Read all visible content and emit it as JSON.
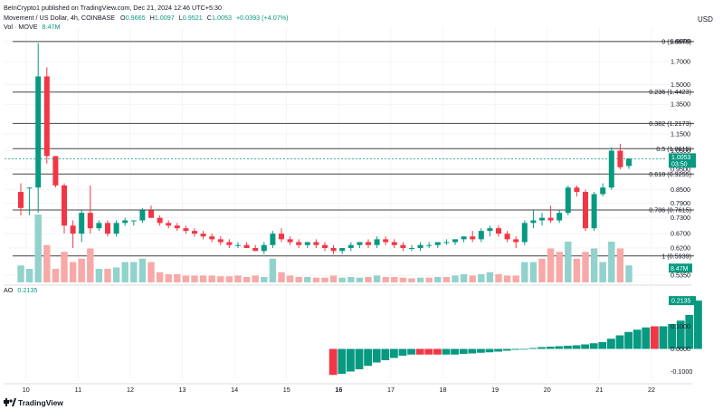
{
  "publisher": {
    "text": "BeInCrypto1 published on TradingView.com, Dec 21, 2024 12:46 UTC+5:30"
  },
  "symbol_info": {
    "name": "Movement / US Dollar, 4h, COINBASE",
    "o_label": "O",
    "o_value": "0.9665",
    "h_label": "H",
    "h_value": "1.0097",
    "l_label": "L",
    "l_value": "0.9521",
    "c_label": "C",
    "c_value": "1.0053",
    "change": "+0.0393 (+4.07%)"
  },
  "vol_info": {
    "label": "Vol · MOVE",
    "value": "8.47M"
  },
  "ao_info": {
    "label": "AO",
    "value": "0.2135"
  },
  "currency": "USD",
  "branding": {
    "logo_text": "TradingView"
  },
  "colors": {
    "up": "#089981",
    "down": "#f23645",
    "vol_up": "#92d2cc",
    "vol_down": "#f7a9a7",
    "fib_line": "#444444",
    "grid": "#eeeeee",
    "text": "#131722",
    "axis_text": "#131722"
  },
  "chart_data": [
    {
      "type": "candlestick",
      "name": "Movement / US Dollar, 4h, COINBASE",
      "y_scale": "log",
      "ylim": [
        0.53,
        2.05
      ],
      "y_ticks": [
        "1.9000",
        "1.7000",
        "1.5000",
        "1.3500",
        "1.1500",
        "1.0500",
        "0.9500",
        "0.8500",
        "0.7900",
        "0.7300",
        "0.6700",
        "0.6200",
        "0.5350"
      ],
      "x_ticks": [
        "10",
        "11",
        "12",
        "13",
        "14",
        "15",
        "16",
        "17",
        "18",
        "19",
        "20",
        "21",
        "22"
      ],
      "x_tick_positions": [
        0.6,
        6.6,
        12.6,
        18.6,
        24.6,
        30.6,
        36.6,
        42.6,
        48.6,
        54.6,
        60.6,
        66.6,
        72.6
      ],
      "candles": [
        {
          "o": 0.84,
          "h": 0.88,
          "l": 0.74,
          "c": 0.77
        },
        {
          "o": 0.86,
          "h": 0.86,
          "l": 0.74,
          "c": 0.86
        },
        {
          "o": 0.86,
          "h": 1.88,
          "l": 0.75,
          "c": 1.57
        },
        {
          "o": 1.57,
          "h": 1.65,
          "l": 0.98,
          "c": 1.02
        },
        {
          "o": 1.02,
          "h": 1.02,
          "l": 0.86,
          "c": 0.87
        },
        {
          "o": 0.87,
          "h": 0.88,
          "l": 0.67,
          "c": 0.7
        },
        {
          "o": 0.7,
          "h": 0.72,
          "l": 0.62,
          "c": 0.67
        },
        {
          "o": 0.67,
          "h": 0.76,
          "l": 0.64,
          "c": 0.75
        },
        {
          "o": 0.75,
          "h": 0.87,
          "l": 0.67,
          "c": 0.69
        },
        {
          "o": 0.69,
          "h": 0.72,
          "l": 0.68,
          "c": 0.71
        },
        {
          "o": 0.71,
          "h": 0.72,
          "l": 0.66,
          "c": 0.67
        },
        {
          "o": 0.67,
          "h": 0.72,
          "l": 0.66,
          "c": 0.71
        },
        {
          "o": 0.71,
          "h": 0.73,
          "l": 0.7,
          "c": 0.72
        },
        {
          "o": 0.72,
          "h": 0.72,
          "l": 0.7,
          "c": 0.72
        },
        {
          "o": 0.72,
          "h": 0.77,
          "l": 0.71,
          "c": 0.76
        },
        {
          "o": 0.76,
          "h": 0.78,
          "l": 0.74,
          "c": 0.73
        },
        {
          "o": 0.73,
          "h": 0.74,
          "l": 0.7,
          "c": 0.71
        },
        {
          "o": 0.71,
          "h": 0.72,
          "l": 0.69,
          "c": 0.7
        },
        {
          "o": 0.7,
          "h": 0.71,
          "l": 0.68,
          "c": 0.69
        },
        {
          "o": 0.69,
          "h": 0.7,
          "l": 0.67,
          "c": 0.68
        },
        {
          "o": 0.68,
          "h": 0.69,
          "l": 0.66,
          "c": 0.67
        },
        {
          "o": 0.67,
          "h": 0.68,
          "l": 0.65,
          "c": 0.66
        },
        {
          "o": 0.66,
          "h": 0.67,
          "l": 0.64,
          "c": 0.65
        },
        {
          "o": 0.65,
          "h": 0.66,
          "l": 0.63,
          "c": 0.64
        },
        {
          "o": 0.64,
          "h": 0.65,
          "l": 0.62,
          "c": 0.63
        },
        {
          "o": 0.63,
          "h": 0.64,
          "l": 0.62,
          "c": 0.63
        },
        {
          "o": 0.63,
          "h": 0.64,
          "l": 0.62,
          "c": 0.62
        },
        {
          "o": 0.62,
          "h": 0.63,
          "l": 0.61,
          "c": 0.61
        },
        {
          "o": 0.61,
          "h": 0.64,
          "l": 0.6,
          "c": 0.63
        },
        {
          "o": 0.63,
          "h": 0.68,
          "l": 0.62,
          "c": 0.67
        },
        {
          "o": 0.67,
          "h": 0.69,
          "l": 0.64,
          "c": 0.65
        },
        {
          "o": 0.65,
          "h": 0.66,
          "l": 0.63,
          "c": 0.64
        },
        {
          "o": 0.64,
          "h": 0.65,
          "l": 0.62,
          "c": 0.63
        },
        {
          "o": 0.63,
          "h": 0.64,
          "l": 0.62,
          "c": 0.64
        },
        {
          "o": 0.64,
          "h": 0.65,
          "l": 0.62,
          "c": 0.63
        },
        {
          "o": 0.63,
          "h": 0.64,
          "l": 0.61,
          "c": 0.62
        },
        {
          "o": 0.62,
          "h": 0.63,
          "l": 0.6,
          "c": 0.61
        },
        {
          "o": 0.61,
          "h": 0.62,
          "l": 0.6,
          "c": 0.62
        },
        {
          "o": 0.62,
          "h": 0.64,
          "l": 0.61,
          "c": 0.63
        },
        {
          "o": 0.63,
          "h": 0.64,
          "l": 0.62,
          "c": 0.64
        },
        {
          "o": 0.64,
          "h": 0.65,
          "l": 0.62,
          "c": 0.63
        },
        {
          "o": 0.63,
          "h": 0.66,
          "l": 0.62,
          "c": 0.65
        },
        {
          "o": 0.65,
          "h": 0.66,
          "l": 0.63,
          "c": 0.64
        },
        {
          "o": 0.64,
          "h": 0.65,
          "l": 0.62,
          "c": 0.63
        },
        {
          "o": 0.63,
          "h": 0.64,
          "l": 0.61,
          "c": 0.62
        },
        {
          "o": 0.62,
          "h": 0.63,
          "l": 0.61,
          "c": 0.62
        },
        {
          "o": 0.62,
          "h": 0.64,
          "l": 0.61,
          "c": 0.63
        },
        {
          "o": 0.63,
          "h": 0.64,
          "l": 0.62,
          "c": 0.63
        },
        {
          "o": 0.63,
          "h": 0.64,
          "l": 0.62,
          "c": 0.64
        },
        {
          "o": 0.64,
          "h": 0.65,
          "l": 0.63,
          "c": 0.64
        },
        {
          "o": 0.64,
          "h": 0.65,
          "l": 0.63,
          "c": 0.65
        },
        {
          "o": 0.65,
          "h": 0.66,
          "l": 0.64,
          "c": 0.66
        },
        {
          "o": 0.66,
          "h": 0.68,
          "l": 0.64,
          "c": 0.65
        },
        {
          "o": 0.65,
          "h": 0.69,
          "l": 0.64,
          "c": 0.68
        },
        {
          "o": 0.68,
          "h": 0.7,
          "l": 0.66,
          "c": 0.69
        },
        {
          "o": 0.69,
          "h": 0.7,
          "l": 0.66,
          "c": 0.67
        },
        {
          "o": 0.67,
          "h": 0.68,
          "l": 0.64,
          "c": 0.65
        },
        {
          "o": 0.65,
          "h": 0.66,
          "l": 0.62,
          "c": 0.64
        },
        {
          "o": 0.64,
          "h": 0.72,
          "l": 0.63,
          "c": 0.71
        },
        {
          "o": 0.71,
          "h": 0.76,
          "l": 0.69,
          "c": 0.72
        },
        {
          "o": 0.72,
          "h": 0.75,
          "l": 0.7,
          "c": 0.73
        },
        {
          "o": 0.73,
          "h": 0.78,
          "l": 0.71,
          "c": 0.72
        },
        {
          "o": 0.72,
          "h": 0.76,
          "l": 0.71,
          "c": 0.75
        },
        {
          "o": 0.75,
          "h": 0.87,
          "l": 0.74,
          "c": 0.86
        },
        {
          "o": 0.86,
          "h": 0.87,
          "l": 0.82,
          "c": 0.84
        },
        {
          "o": 0.84,
          "h": 0.85,
          "l": 0.68,
          "c": 0.69
        },
        {
          "o": 0.69,
          "h": 0.84,
          "l": 0.68,
          "c": 0.83
        },
        {
          "o": 0.83,
          "h": 0.88,
          "l": 0.82,
          "c": 0.86
        },
        {
          "o": 0.86,
          "h": 1.07,
          "l": 0.85,
          "c": 1.05
        },
        {
          "o": 1.05,
          "h": 1.09,
          "l": 0.95,
          "c": 0.96
        },
        {
          "o": 0.9665,
          "h": 1.0097,
          "l": 0.9521,
          "c": 1.0053
        }
      ],
      "volume": [
        {
          "v": 0.25,
          "up": true
        },
        {
          "v": 0.2,
          "up": true
        },
        {
          "v": 1.0,
          "up": true
        },
        {
          "v": 0.55,
          "up": false
        },
        {
          "v": 0.2,
          "up": false
        },
        {
          "v": 0.45,
          "up": false
        },
        {
          "v": 0.3,
          "up": false
        },
        {
          "v": 0.35,
          "up": false
        },
        {
          "v": 0.5,
          "up": false
        },
        {
          "v": 0.2,
          "up": true
        },
        {
          "v": 0.2,
          "up": false
        },
        {
          "v": 0.22,
          "up": true
        },
        {
          "v": 0.3,
          "up": true
        },
        {
          "v": 0.3,
          "up": true
        },
        {
          "v": 0.35,
          "up": true
        },
        {
          "v": 0.3,
          "up": false
        },
        {
          "v": 0.15,
          "up": false
        },
        {
          "v": 0.12,
          "up": false
        },
        {
          "v": 0.12,
          "up": false
        },
        {
          "v": 0.1,
          "up": false
        },
        {
          "v": 0.1,
          "up": false
        },
        {
          "v": 0.1,
          "up": false
        },
        {
          "v": 0.1,
          "up": false
        },
        {
          "v": 0.09,
          "up": false
        },
        {
          "v": 0.09,
          "up": false
        },
        {
          "v": 0.1,
          "up": false
        },
        {
          "v": 0.08,
          "up": false
        },
        {
          "v": 0.1,
          "up": false
        },
        {
          "v": 0.08,
          "up": true
        },
        {
          "v": 0.35,
          "up": true
        },
        {
          "v": 0.15,
          "up": false
        },
        {
          "v": 0.1,
          "up": false
        },
        {
          "v": 0.08,
          "up": false
        },
        {
          "v": 0.08,
          "up": true
        },
        {
          "v": 0.07,
          "up": false
        },
        {
          "v": 0.07,
          "up": false
        },
        {
          "v": 0.1,
          "up": false
        },
        {
          "v": 0.07,
          "up": true
        },
        {
          "v": 0.08,
          "up": true
        },
        {
          "v": 0.07,
          "up": true
        },
        {
          "v": 0.08,
          "up": false
        },
        {
          "v": 0.1,
          "up": true
        },
        {
          "v": 0.08,
          "up": false
        },
        {
          "v": 0.08,
          "up": false
        },
        {
          "v": 0.07,
          "up": false
        },
        {
          "v": 0.06,
          "up": false
        },
        {
          "v": 0.07,
          "up": true
        },
        {
          "v": 0.07,
          "up": false
        },
        {
          "v": 0.08,
          "up": true
        },
        {
          "v": 0.08,
          "up": false
        },
        {
          "v": 0.1,
          "up": true
        },
        {
          "v": 0.12,
          "up": true
        },
        {
          "v": 0.1,
          "up": false
        },
        {
          "v": 0.12,
          "up": true
        },
        {
          "v": 0.15,
          "up": true
        },
        {
          "v": 0.12,
          "up": false
        },
        {
          "v": 0.1,
          "up": false
        },
        {
          "v": 0.1,
          "up": false
        },
        {
          "v": 0.3,
          "up": true
        },
        {
          "v": 0.3,
          "up": true
        },
        {
          "v": 0.35,
          "up": false
        },
        {
          "v": 0.5,
          "up": false
        },
        {
          "v": 0.45,
          "up": false
        },
        {
          "v": 0.6,
          "up": true
        },
        {
          "v": 0.35,
          "up": false
        },
        {
          "v": 0.45,
          "up": false
        },
        {
          "v": 0.5,
          "up": true
        },
        {
          "v": 0.3,
          "up": true
        },
        {
          "v": 0.6,
          "up": true
        },
        {
          "v": 0.5,
          "up": false
        },
        {
          "v": 0.25,
          "up": true
        }
      ],
      "fib_levels": [
        {
          "label": "0 (1.8970)",
          "value": 1.897
        },
        {
          "label": "0.236 (1.4423)",
          "value": 1.4423
        },
        {
          "label": "0.382 (1.2173)",
          "value": 1.2173
        },
        {
          "label": "0.5 (1.0615)",
          "value": 1.0615
        },
        {
          "label": "0.618 (0.9255)",
          "value": 0.9255
        },
        {
          "label": "0.786 (0.7615)",
          "value": 0.7615
        },
        {
          "label": "1 (0.5939)",
          "value": 0.5939
        }
      ],
      "last_price_label": "1.0053",
      "countdown_label": "03:50",
      "volume_label": "8.47M"
    },
    {
      "type": "bar",
      "name": "AO",
      "ylim": [
        -0.13,
        0.27
      ],
      "y_ticks": [
        "0.1000",
        "0.0000",
        "-0.1000"
      ],
      "y_tick_values": [
        0.1,
        0.0,
        -0.1
      ],
      "start_index": 36,
      "values": [
        -0.115,
        -0.11,
        -0.1,
        -0.09,
        -0.075,
        -0.06,
        -0.05,
        -0.04,
        -0.03,
        -0.025,
        -0.025,
        -0.025,
        -0.025,
        -0.025,
        -0.025,
        -0.022,
        -0.02,
        -0.017,
        -0.015,
        -0.012,
        -0.008,
        -0.004,
        0.0,
        0.004,
        0.008,
        0.01,
        0.012,
        0.014,
        0.016,
        0.02,
        0.025,
        0.03,
        0.045,
        0.06,
        0.075,
        0.085,
        0.095,
        0.1,
        0.1,
        0.11,
        0.125,
        0.15,
        0.2135
      ],
      "colors_up": [
        false,
        true,
        true,
        true,
        true,
        true,
        true,
        true,
        true,
        true,
        false,
        false,
        false,
        true,
        true,
        true,
        true,
        true,
        true,
        true,
        true,
        true,
        true,
        true,
        true,
        true,
        true,
        true,
        true,
        true,
        true,
        true,
        true,
        true,
        true,
        true,
        true,
        false,
        true,
        true,
        true,
        true,
        true
      ],
      "last_value_label": "0.2135"
    }
  ]
}
